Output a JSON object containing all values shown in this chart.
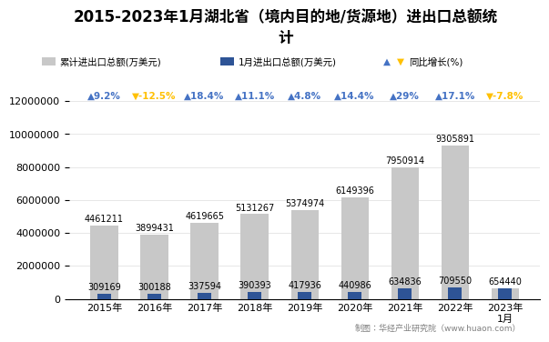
{
  "title_line1": "2015-2023年1月湖北省（境内目的地/货源地）进出口总额统",
  "title_line2": "计",
  "categories": [
    "2015年",
    "2016年",
    "2017年",
    "2018年",
    "2019年",
    "2020年",
    "2021年",
    "2022年",
    "2023年\n1月"
  ],
  "cumulative_values": [
    4461211,
    3899431,
    4619665,
    5131267,
    5374974,
    6149396,
    7950914,
    9305891,
    654440
  ],
  "jan_values": [
    309169,
    300188,
    337594,
    390393,
    417936,
    440986,
    634836,
    709550,
    654440
  ],
  "growth_rates": [
    9.2,
    -12.5,
    18.4,
    11.1,
    4.8,
    14.4,
    29.0,
    17.1,
    -7.8
  ],
  "growth_labels": [
    "9.2%",
    "-12.5%",
    "18.4%",
    "11.1%",
    "4.8%",
    "14.4%",
    "29%",
    "17.1%",
    "-7.8%"
  ],
  "bar_color_cumulative": "#c8c8c8",
  "bar_color_jan": "#2e5496",
  "growth_color_up": "#4472c4",
  "growth_color_down": "#ffc000",
  "legend_cumulative": "累计进出口总额(万美元)",
  "legend_jan": "1月进出口总额(万美元)",
  "legend_growth": "同比增长(%)",
  "footnote": "制图：华经产业研究院（www.huaon.com）",
  "ylim": [
    0,
    12000000
  ],
  "yticks": [
    0,
    2000000,
    4000000,
    6000000,
    8000000,
    10000000,
    12000000
  ],
  "background_color": "#ffffff",
  "title_fontsize": 12,
  "label_fontsize": 7,
  "tick_fontsize": 8,
  "legend_fontsize": 7.5,
  "growth_fontsize": 7.5
}
